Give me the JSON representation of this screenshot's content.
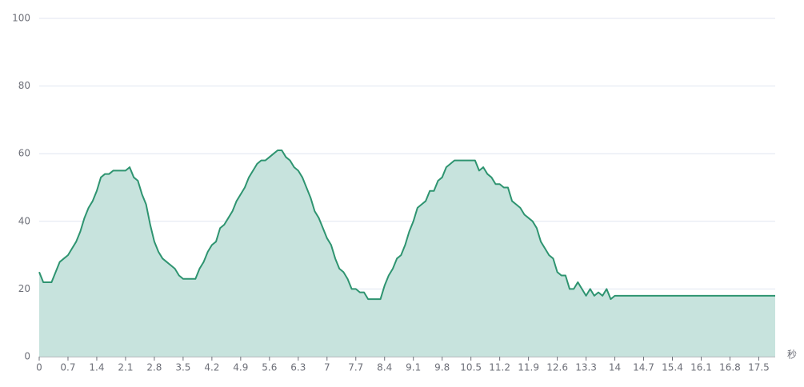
{
  "chart_data": {
    "type": "area",
    "x_axis_name": "秒",
    "x": [
      0,
      0.1,
      0.2,
      0.3,
      0.4,
      0.5,
      0.6,
      0.7,
      0.8,
      0.9,
      1.0,
      1.1,
      1.2,
      1.3,
      1.4,
      1.5,
      1.6,
      1.7,
      1.8,
      1.9,
      2.0,
      2.1,
      2.2,
      2.3,
      2.4,
      2.5,
      2.6,
      2.7,
      2.8,
      2.9,
      3.0,
      3.1,
      3.2,
      3.3,
      3.4,
      3.5,
      3.6,
      3.7,
      3.8,
      3.9,
      4.0,
      4.1,
      4.2,
      4.3,
      4.4,
      4.5,
      4.6,
      4.7,
      4.8,
      4.9,
      5.0,
      5.1,
      5.2,
      5.3,
      5.4,
      5.5,
      5.6,
      5.7,
      5.8,
      5.9,
      6.0,
      6.1,
      6.2,
      6.3,
      6.4,
      6.5,
      6.6,
      6.7,
      6.8,
      6.9,
      7.0,
      7.1,
      7.2,
      7.3,
      7.4,
      7.5,
      7.6,
      7.7,
      7.8,
      7.9,
      8.0,
      8.1,
      8.2,
      8.3,
      8.4,
      8.5,
      8.6,
      8.7,
      8.8,
      8.9,
      9.0,
      9.1,
      9.2,
      9.3,
      9.4,
      9.5,
      9.6,
      9.7,
      9.8,
      9.9,
      10.0,
      10.1,
      10.2,
      10.3,
      10.4,
      10.5,
      10.6,
      10.7,
      10.8,
      10.9,
      11.0,
      11.1,
      11.2,
      11.3,
      11.4,
      11.5,
      11.6,
      11.7,
      11.8,
      11.9,
      12.0,
      12.1,
      12.2,
      12.3,
      12.4,
      12.5,
      12.6,
      12.7,
      12.8,
      12.9,
      13.0,
      13.1,
      13.2,
      13.3,
      13.4,
      13.5,
      13.6,
      13.7,
      13.8,
      13.9,
      14.0,
      14.1,
      14.2,
      14.3,
      14.4,
      14.5,
      14.6,
      14.7,
      14.8,
      14.9,
      15.0,
      15.1,
      15.2,
      15.3,
      15.4,
      15.5,
      15.6,
      15.7,
      15.8,
      15.9,
      16.0,
      16.1,
      16.2,
      16.3,
      16.4,
      16.5,
      16.6,
      16.7,
      16.8,
      16.9,
      17.0,
      17.1,
      17.2,
      17.3,
      17.4,
      17.5,
      17.6,
      17.7,
      17.8,
      17.9
    ],
    "values": [
      25,
      22,
      22,
      22,
      25,
      28,
      29,
      30,
      32,
      34,
      37,
      41,
      44,
      46,
      49,
      53,
      54,
      54,
      55,
      55,
      55,
      55,
      56,
      53,
      52,
      48,
      45,
      39,
      34,
      31,
      29,
      28,
      27,
      26,
      24,
      23,
      23,
      23,
      23,
      26,
      28,
      31,
      33,
      34,
      38,
      39,
      41,
      43,
      46,
      48,
      50,
      53,
      55,
      57,
      58,
      58,
      59,
      60,
      61,
      61,
      59,
      58,
      56,
      55,
      53,
      50,
      47,
      43,
      41,
      38,
      35,
      33,
      29,
      26,
      25,
      23,
      20,
      20,
      19,
      19,
      17,
      17,
      17,
      17,
      21,
      24,
      26,
      29,
      30,
      33,
      37,
      40,
      44,
      45,
      46,
      49,
      49,
      52,
      53,
      56,
      57,
      58,
      58,
      58,
      58,
      58,
      58,
      55,
      56,
      54,
      53,
      51,
      51,
      50,
      50,
      46,
      45,
      44,
      42,
      41,
      40,
      38,
      34,
      32,
      30,
      29,
      25,
      24,
      24,
      20,
      20,
      22,
      20,
      18,
      20,
      18,
      19,
      18,
      20,
      17,
      18,
      18,
      18,
      18,
      18,
      18,
      18,
      18,
      18,
      18,
      18,
      18,
      18,
      18,
      18,
      18,
      18,
      18,
      18,
      18,
      18,
      18,
      18,
      18,
      18,
      18,
      18,
      18,
      18,
      18,
      18,
      18,
      18,
      18,
      18,
      18,
      18,
      18,
      18,
      18
    ],
    "color": "#2e9470",
    "area_color": "#c7e3dd",
    "xlim": [
      0,
      17.9
    ],
    "xticks": [
      0,
      0.7,
      1.4,
      2.1,
      2.8,
      3.5,
      4.2,
      4.9,
      5.6,
      6.3,
      7,
      7.7,
      8.4,
      9.1,
      9.8,
      10.5,
      11.2,
      11.9,
      12.6,
      13.3,
      14,
      14.7,
      15.4,
      16.1,
      16.8,
      17.5
    ],
    "ylim": [
      0,
      100
    ],
    "yticks": [
      0,
      20,
      40,
      60,
      80,
      100
    ],
    "grid": true
  }
}
